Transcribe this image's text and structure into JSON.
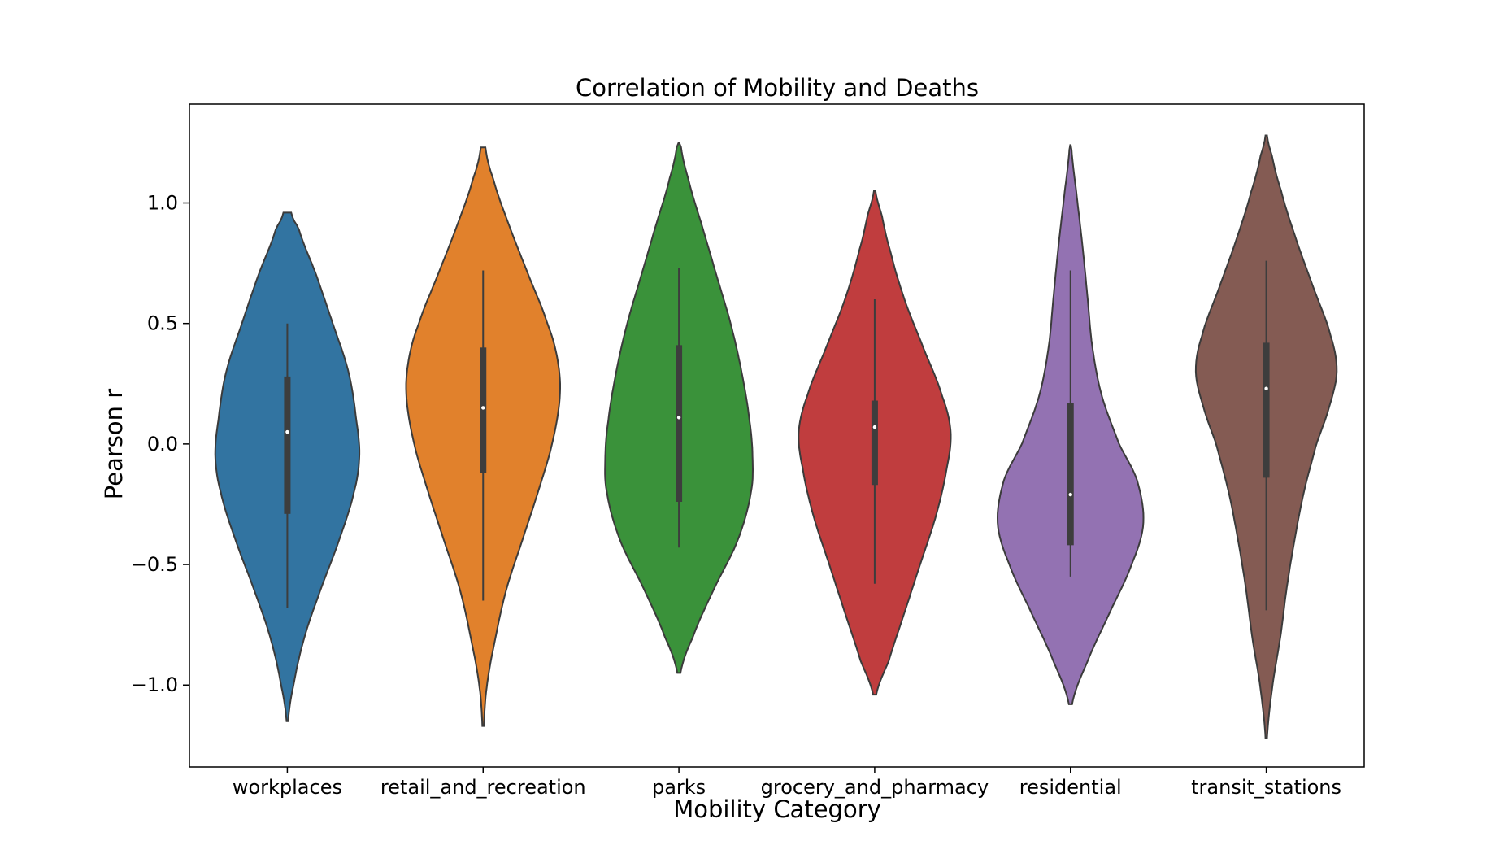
{
  "chart_data": {
    "type": "violin",
    "title": "Correlation of Mobility and Deaths",
    "xlabel": "Mobility Category",
    "ylabel": "Pearson r",
    "ylim": [
      -1.34,
      1.41
    ],
    "yticks": [
      -1.0,
      -0.5,
      0.0,
      0.5,
      1.0
    ],
    "ytick_labels": [
      "−1.0",
      "−0.5",
      "0.0",
      "0.5",
      "1.0"
    ],
    "grid": false,
    "legend": "none",
    "series": [
      {
        "category": "workplaces",
        "color": "#3274a1",
        "min": -0.68,
        "q1": -0.29,
        "median": 0.05,
        "q3": 0.28,
        "max": 0.5,
        "kde_min": -1.15,
        "kde_max": 0.96,
        "density": [
          [
            -1.15,
            0.01
          ],
          [
            -1.0,
            0.08
          ],
          [
            -0.8,
            0.22
          ],
          [
            -0.6,
            0.43
          ],
          [
            -0.4,
            0.66
          ],
          [
            -0.2,
            0.85
          ],
          [
            -0.05,
            0.92
          ],
          [
            0.1,
            0.88
          ],
          [
            0.3,
            0.78
          ],
          [
            0.5,
            0.58
          ],
          [
            0.7,
            0.37
          ],
          [
            0.9,
            0.14
          ],
          [
            0.96,
            0.05
          ]
        ]
      },
      {
        "category": "retail_and_recreation",
        "color": "#e1812c",
        "min": -0.65,
        "q1": -0.12,
        "median": 0.15,
        "q3": 0.4,
        "max": 0.72,
        "kde_min": -1.17,
        "kde_max": 1.23,
        "density": [
          [
            -1.17,
            0.01
          ],
          [
            -1.0,
            0.05
          ],
          [
            -0.8,
            0.16
          ],
          [
            -0.6,
            0.3
          ],
          [
            -0.4,
            0.5
          ],
          [
            -0.2,
            0.7
          ],
          [
            0.0,
            0.88
          ],
          [
            0.2,
            0.98
          ],
          [
            0.35,
            0.95
          ],
          [
            0.5,
            0.82
          ],
          [
            0.7,
            0.58
          ],
          [
            0.9,
            0.34
          ],
          [
            1.1,
            0.13
          ],
          [
            1.23,
            0.03
          ]
        ]
      },
      {
        "category": "parks",
        "color": "#3a923a",
        "min": -0.43,
        "q1": -0.24,
        "median": 0.11,
        "q3": 0.41,
        "max": 0.73,
        "kde_min": -0.95,
        "kde_max": 1.25,
        "density": [
          [
            -0.95,
            0.02
          ],
          [
            -0.8,
            0.18
          ],
          [
            -0.6,
            0.45
          ],
          [
            -0.4,
            0.75
          ],
          [
            -0.2,
            0.92
          ],
          [
            -0.05,
            0.94
          ],
          [
            0.1,
            0.9
          ],
          [
            0.3,
            0.8
          ],
          [
            0.5,
            0.66
          ],
          [
            0.7,
            0.48
          ],
          [
            0.9,
            0.3
          ],
          [
            1.1,
            0.12
          ],
          [
            1.25,
            0.02
          ]
        ]
      },
      {
        "category": "grocery_and_pharmacy",
        "color": "#c03d3e",
        "min": -0.58,
        "q1": -0.17,
        "median": 0.07,
        "q3": 0.18,
        "max": 0.6,
        "kde_min": -1.04,
        "kde_max": 1.05,
        "density": [
          [
            -1.04,
            0.02
          ],
          [
            -0.9,
            0.18
          ],
          [
            -0.7,
            0.38
          ],
          [
            -0.5,
            0.58
          ],
          [
            -0.3,
            0.78
          ],
          [
            -0.1,
            0.92
          ],
          [
            0.05,
            0.97
          ],
          [
            0.2,
            0.86
          ],
          [
            0.4,
            0.62
          ],
          [
            0.6,
            0.38
          ],
          [
            0.8,
            0.2
          ],
          [
            0.95,
            0.09
          ],
          [
            1.05,
            0.01
          ]
        ]
      },
      {
        "category": "residential",
        "color": "#9372b2",
        "min": -0.55,
        "q1": -0.42,
        "median": -0.21,
        "q3": 0.17,
        "max": 0.72,
        "kde_min": -1.08,
        "kde_max": 1.24,
        "density": [
          [
            -1.08,
            0.02
          ],
          [
            -0.9,
            0.22
          ],
          [
            -0.7,
            0.5
          ],
          [
            -0.5,
            0.78
          ],
          [
            -0.33,
            0.93
          ],
          [
            -0.15,
            0.85
          ],
          [
            0.0,
            0.62
          ],
          [
            0.2,
            0.4
          ],
          [
            0.4,
            0.28
          ],
          [
            0.6,
            0.22
          ],
          [
            0.8,
            0.16
          ],
          [
            1.0,
            0.09
          ],
          [
            1.24,
            0.01
          ]
        ]
      },
      {
        "category": "transit_stations",
        "color": "#845b53",
        "min": -0.69,
        "q1": -0.14,
        "median": 0.23,
        "q3": 0.42,
        "max": 0.76,
        "kde_min": -1.22,
        "kde_max": 1.28,
        "density": [
          [
            -1.22,
            0.01
          ],
          [
            -1.0,
            0.08
          ],
          [
            -0.8,
            0.18
          ],
          [
            -0.6,
            0.26
          ],
          [
            -0.4,
            0.36
          ],
          [
            -0.2,
            0.48
          ],
          [
            0.0,
            0.64
          ],
          [
            0.15,
            0.8
          ],
          [
            0.3,
            0.9
          ],
          [
            0.45,
            0.82
          ],
          [
            0.65,
            0.6
          ],
          [
            0.85,
            0.38
          ],
          [
            1.05,
            0.19
          ],
          [
            1.2,
            0.07
          ],
          [
            1.28,
            0.01
          ]
        ]
      }
    ]
  }
}
